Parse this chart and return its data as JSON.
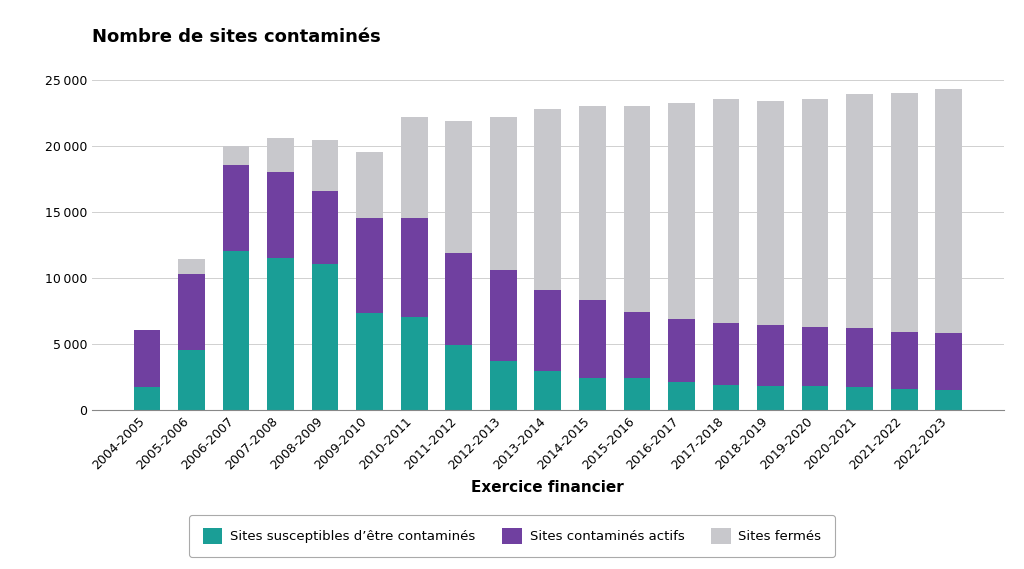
{
  "categories": [
    "2004-2005",
    "2005-2006",
    "2006-2007",
    "2007-2008",
    "2008-2009",
    "2009-2010",
    "2010-2011",
    "2011-2012",
    "2012-2013",
    "2013-2014",
    "2014-2015",
    "2015-2016",
    "2016-2017",
    "2017-2018",
    "2018-2019",
    "2019-2020",
    "2020-2021",
    "2021-2022",
    "2022-2023"
  ],
  "susceptibles": [
    1700,
    4500,
    12000,
    11500,
    11000,
    7300,
    7000,
    4900,
    3700,
    2900,
    2400,
    2400,
    2100,
    1900,
    1800,
    1800,
    1700,
    1600,
    1500
  ],
  "actifs": [
    4300,
    5800,
    6500,
    6500,
    5600,
    7200,
    7500,
    7000,
    6900,
    6200,
    5900,
    5000,
    4800,
    4700,
    4600,
    4500,
    4500,
    4300,
    4300
  ],
  "fermes": [
    0,
    1100,
    1500,
    2600,
    3800,
    5000,
    7700,
    10000,
    11600,
    13700,
    14700,
    15600,
    16300,
    16900,
    17000,
    17200,
    17700,
    18100,
    18500
  ],
  "color_susceptibles": "#1a9e96",
  "color_actifs": "#7040a0",
  "color_fermes": "#c8c8cc",
  "title": "Nombre de sites contaminés",
  "xlabel": "Exercice financier",
  "ylim": [
    0,
    25000
  ],
  "yticks": [
    0,
    5000,
    10000,
    15000,
    20000,
    25000
  ],
  "legend_labels": [
    "Sites susceptibles d’être contaminés",
    "Sites contaminés actifs",
    "Sites fermés"
  ],
  "title_fontsize": 13,
  "xlabel_fontsize": 11,
  "tick_fontsize": 9,
  "legend_fontsize": 9.5
}
